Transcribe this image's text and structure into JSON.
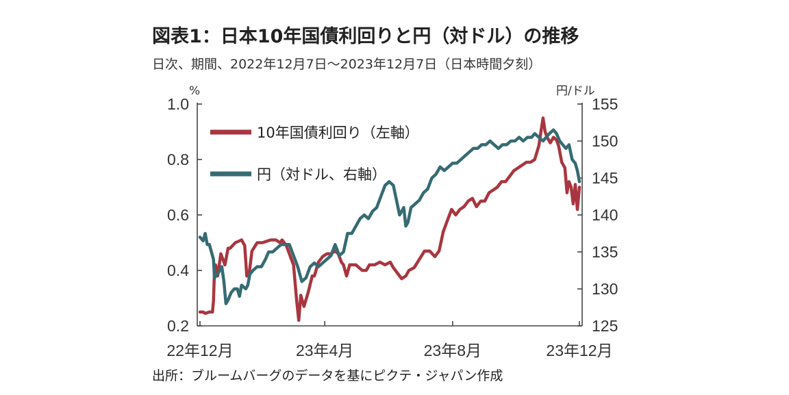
{
  "chart_data": {
    "type": "line",
    "title": "図表1：日本10年国債利回りと円（対ドル）の推移",
    "subtitle": "日次、期間、2022年12月7日～2023年12月7日（日本時間夕刻）",
    "source": "出所：ブルームバーグのデータを基にピクテ・ジャパン作成",
    "left_axis": {
      "unit": "%",
      "range": [
        0.2,
        1.0
      ],
      "ticks": [
        "1.0",
        "0.8",
        "0.6",
        "0.4",
        "0.2"
      ]
    },
    "right_axis": {
      "unit": "円/ドル",
      "range": [
        125,
        155
      ],
      "ticks": [
        "155",
        "150",
        "145",
        "140",
        "135",
        "130",
        "125"
      ]
    },
    "x_ticks": [
      {
        "label": "22年12月",
        "x": 0
      },
      {
        "label": "23年4月",
        "x": 120
      },
      {
        "label": "23年8月",
        "x": 243
      },
      {
        "label": "23年12月",
        "x": 365
      }
    ],
    "x_range": [
      0,
      365
    ],
    "legend_placement": "top-left",
    "series": [
      {
        "name": "10年国債利回り（左軸）",
        "axis": "left",
        "color": "#a83640",
        "points": [
          [
            0,
            0.25
          ],
          [
            3,
            0.25
          ],
          [
            5,
            0.245
          ],
          [
            9,
            0.25
          ],
          [
            12,
            0.25
          ],
          [
            13,
            0.29
          ],
          [
            14,
            0.4
          ],
          [
            15,
            0.42
          ],
          [
            17,
            0.38
          ],
          [
            20,
            0.46
          ],
          [
            24,
            0.42
          ],
          [
            27,
            0.48
          ],
          [
            29,
            0.48
          ],
          [
            34,
            0.5
          ],
          [
            40,
            0.51
          ],
          [
            43,
            0.49
          ],
          [
            45,
            0.38
          ],
          [
            47,
            0.38
          ],
          [
            50,
            0.47
          ],
          [
            55,
            0.5
          ],
          [
            60,
            0.5
          ],
          [
            68,
            0.51
          ],
          [
            73,
            0.51
          ],
          [
            77,
            0.5
          ],
          [
            79,
            0.51
          ],
          [
            83,
            0.49
          ],
          [
            86,
            0.46
          ],
          [
            90,
            0.42
          ],
          [
            93,
            0.29
          ],
          [
            95,
            0.22
          ],
          [
            97,
            0.31
          ],
          [
            100,
            0.27
          ],
          [
            104,
            0.32
          ],
          [
            108,
            0.38
          ],
          [
            110,
            0.38
          ],
          [
            114,
            0.43
          ],
          [
            118,
            0.45
          ],
          [
            122,
            0.46
          ],
          [
            126,
            0.46
          ],
          [
            130,
            0.47
          ],
          [
            133,
            0.46
          ],
          [
            136,
            0.43
          ],
          [
            138,
            0.42
          ],
          [
            141,
            0.38
          ],
          [
            144,
            0.42
          ],
          [
            150,
            0.42
          ],
          [
            156,
            0.4
          ],
          [
            160,
            0.4
          ],
          [
            163,
            0.42
          ],
          [
            168,
            0.42
          ],
          [
            173,
            0.43
          ],
          [
            178,
            0.42
          ],
          [
            183,
            0.43
          ],
          [
            186,
            0.41
          ],
          [
            190,
            0.39
          ],
          [
            194,
            0.37
          ],
          [
            198,
            0.38
          ],
          [
            201,
            0.4
          ],
          [
            206,
            0.41
          ],
          [
            211,
            0.44
          ],
          [
            216,
            0.47
          ],
          [
            221,
            0.47
          ],
          [
            226,
            0.45
          ],
          [
            230,
            0.47
          ],
          [
            234,
            0.54
          ],
          [
            238,
            0.58
          ],
          [
            242,
            0.62
          ],
          [
            246,
            0.6
          ],
          [
            250,
            0.62
          ],
          [
            254,
            0.63
          ],
          [
            258,
            0.65
          ],
          [
            262,
            0.66
          ],
          [
            266,
            0.63
          ],
          [
            270,
            0.65
          ],
          [
            274,
            0.65
          ],
          [
            278,
            0.68
          ],
          [
            282,
            0.69
          ],
          [
            286,
            0.7
          ],
          [
            290,
            0.72
          ],
          [
            294,
            0.72
          ],
          [
            298,
            0.74
          ],
          [
            302,
            0.76
          ],
          [
            306,
            0.77
          ],
          [
            310,
            0.78
          ],
          [
            314,
            0.79
          ],
          [
            318,
            0.79
          ],
          [
            322,
            0.8
          ],
          [
            326,
            0.85
          ],
          [
            328,
            0.9
          ],
          [
            330,
            0.95
          ],
          [
            332,
            0.9
          ],
          [
            334,
            0.88
          ],
          [
            337,
            0.86
          ],
          [
            340,
            0.88
          ],
          [
            343,
            0.87
          ],
          [
            345,
            0.85
          ],
          [
            348,
            0.79
          ],
          [
            351,
            0.77
          ],
          [
            353,
            0.68
          ],
          [
            355,
            0.72
          ],
          [
            357,
            0.7
          ],
          [
            359,
            0.64
          ],
          [
            361,
            0.71
          ],
          [
            363,
            0.62
          ],
          [
            365,
            0.7
          ]
        ]
      },
      {
        "name": "円（対ドル、右軸）",
        "axis": "right",
        "color": "#366b72",
        "points": [
          [
            0,
            137
          ],
          [
            3,
            136.5
          ],
          [
            5,
            137.5
          ],
          [
            7,
            136
          ],
          [
            9,
            136
          ],
          [
            11,
            135
          ],
          [
            13,
            134
          ],
          [
            14,
            131.5
          ],
          [
            17,
            132
          ],
          [
            21,
            133
          ],
          [
            23,
            131
          ],
          [
            25,
            128
          ],
          [
            27,
            128.5
          ],
          [
            30,
            129.5
          ],
          [
            33,
            130
          ],
          [
            36,
            130
          ],
          [
            38,
            129
          ],
          [
            40,
            130.5
          ],
          [
            44,
            130
          ],
          [
            46,
            130.5
          ],
          [
            48,
            132
          ],
          [
            51,
            132.5
          ],
          [
            55,
            133
          ],
          [
            59,
            133
          ],
          [
            63,
            134
          ],
          [
            66,
            135
          ],
          [
            70,
            135
          ],
          [
            74,
            135.5
          ],
          [
            78,
            136
          ],
          [
            82,
            136
          ],
          [
            86,
            136
          ],
          [
            90,
            134.5
          ],
          [
            94,
            133
          ],
          [
            98,
            131
          ],
          [
            102,
            131.5
          ],
          [
            106,
            133
          ],
          [
            110,
            133.5
          ],
          [
            114,
            133
          ],
          [
            118,
            133.5
          ],
          [
            122,
            134
          ],
          [
            126,
            134.5
          ],
          [
            130,
            136
          ],
          [
            134,
            134.5
          ],
          [
            138,
            135
          ],
          [
            142,
            137.5
          ],
          [
            146,
            137.5
          ],
          [
            150,
            138.5
          ],
          [
            154,
            139.5
          ],
          [
            158,
            140
          ],
          [
            162,
            139.5
          ],
          [
            166,
            140.5
          ],
          [
            170,
            141
          ],
          [
            174,
            142.5
          ],
          [
            178,
            144
          ],
          [
            182,
            144.5
          ],
          [
            186,
            144
          ],
          [
            189,
            142
          ],
          [
            192,
            140
          ],
          [
            196,
            141
          ],
          [
            198,
            138.5
          ],
          [
            200,
            139
          ],
          [
            203,
            141
          ],
          [
            207,
            141.5
          ],
          [
            211,
            142
          ],
          [
            215,
            143
          ],
          [
            219,
            143.5
          ],
          [
            223,
            145
          ],
          [
            227,
            145.5
          ],
          [
            231,
            146.5
          ],
          [
            235,
            146
          ],
          [
            239,
            146.5
          ],
          [
            243,
            147
          ],
          [
            247,
            147
          ],
          [
            251,
            147.5
          ],
          [
            255,
            148
          ],
          [
            259,
            148.5
          ],
          [
            263,
            149
          ],
          [
            267,
            149
          ],
          [
            271,
            149.5
          ],
          [
            275,
            149.5
          ],
          [
            279,
            150
          ],
          [
            283,
            149.5
          ],
          [
            287,
            149
          ],
          [
            291,
            149.5
          ],
          [
            295,
            149.5
          ],
          [
            299,
            150
          ],
          [
            303,
            150
          ],
          [
            307,
            150.5
          ],
          [
            311,
            150
          ],
          [
            315,
            150.5
          ],
          [
            319,
            150.5
          ],
          [
            322,
            151
          ],
          [
            326,
            150.5
          ],
          [
            330,
            150
          ],
          [
            333,
            150.5
          ],
          [
            336,
            151
          ],
          [
            340,
            151.5
          ],
          [
            343,
            151
          ],
          [
            346,
            150
          ],
          [
            349,
            149.5
          ],
          [
            352,
            149
          ],
          [
            355,
            149.5
          ],
          [
            358,
            147.5
          ],
          [
            361,
            147
          ],
          [
            363,
            146
          ],
          [
            365,
            144.5
          ]
        ]
      }
    ]
  }
}
